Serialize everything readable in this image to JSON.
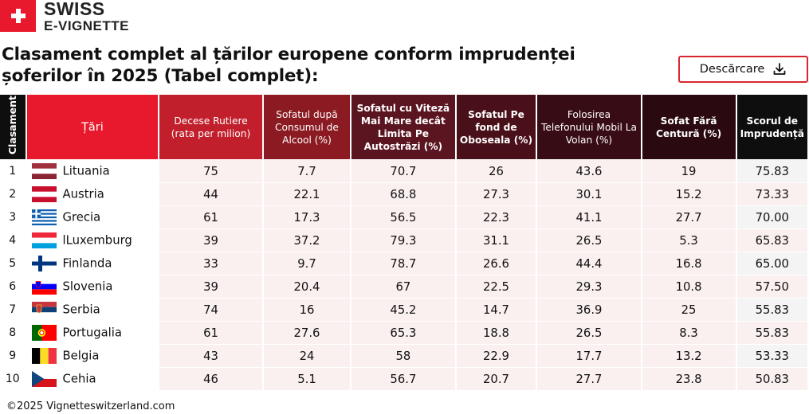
{
  "brand": {
    "line1": "SWISS",
    "line2": "E-VIGNETTE",
    "icon": "swiss-cross-icon",
    "color": "#e8192c"
  },
  "title": "Clasament complet al țărilor europene conform imprudenței șoferilor în 2025 (Tabel complet):",
  "download": {
    "label": "Descărcare",
    "icon": "download-icon"
  },
  "table": {
    "headers": {
      "rank": "Clasament",
      "country": "Țări",
      "c1": "Decese Rutiere (rata per milion)",
      "c2": "Sofatul după Consumul de Alcool (%)",
      "c3": "Sofatul cu Viteză Mai Mare decât Limita Pe Autostrăzi (%)",
      "c4": "Sofatul Pe fond de Oboseala (%)",
      "c5": "Folosirea Telefonului Mobil La Volan (%)",
      "c6": "Sofat Fără Centură (%)",
      "c7": "Scorul de Imprudență"
    },
    "rows": [
      {
        "rank": "1",
        "country": "Lituania",
        "flag": "lithuania",
        "c1": "75",
        "c2": "7.7",
        "c3": "70.7",
        "c4": "26",
        "c5": "43.6",
        "c6": "19",
        "c7": "75.83"
      },
      {
        "rank": "2",
        "country": "Austria",
        "flag": "austria",
        "c1": "44",
        "c2": "22.1",
        "c3": "68.8",
        "c4": "27.3",
        "c5": "30.1",
        "c6": "15.2",
        "c7": "73.33"
      },
      {
        "rank": "3",
        "country": "Grecia",
        "flag": "greece",
        "c1": "61",
        "c2": "17.3",
        "c3": "56.5",
        "c4": "22.3",
        "c5": "41.1",
        "c6": "27.7",
        "c7": "70.00"
      },
      {
        "rank": "4",
        "country": "lLuxemburg",
        "flag": "luxembourg",
        "c1": "39",
        "c2": "37.2",
        "c3": "79.3",
        "c4": "31.1",
        "c5": "26.5",
        "c6": "5.3",
        "c7": "65.83"
      },
      {
        "rank": "5",
        "country": "Finlanda",
        "flag": "finland",
        "c1": "33",
        "c2": "9.7",
        "c3": "78.7",
        "c4": "26.6",
        "c5": "44.4",
        "c6": "16.8",
        "c7": "65.00"
      },
      {
        "rank": "6",
        "country": "Slovenia",
        "flag": "slovenia",
        "c1": "39",
        "c2": "20.4",
        "c3": "67",
        "c4": "22.5",
        "c5": "29.3",
        "c6": "10.8",
        "c7": "57.50"
      },
      {
        "rank": "7",
        "country": "Serbia",
        "flag": "serbia",
        "c1": "74",
        "c2": "16",
        "c3": "45.2",
        "c4": "14.7",
        "c5": "36.9",
        "c6": "25",
        "c7": "55.83"
      },
      {
        "rank": "8",
        "country": "Portugalia",
        "flag": "portugal",
        "c1": "61",
        "c2": "27.6",
        "c3": "65.3",
        "c4": "18.8",
        "c5": "26.5",
        "c6": "8.3",
        "c7": "55.83"
      },
      {
        "rank": "9",
        "country": "Belgia",
        "flag": "belgium",
        "c1": "43",
        "c2": "24",
        "c3": "58",
        "c4": "22.9",
        "c5": "17.7",
        "c6": "13.2",
        "c7": "53.33"
      },
      {
        "rank": "10",
        "country": "Cehia",
        "flag": "czechia",
        "c1": "46",
        "c2": "5.1",
        "c3": "56.7",
        "c4": "20.7",
        "c5": "27.7",
        "c6": "23.8",
        "c7": "50.83"
      }
    ]
  },
  "footer": "©2025 Vignetteswitzerland.com"
}
